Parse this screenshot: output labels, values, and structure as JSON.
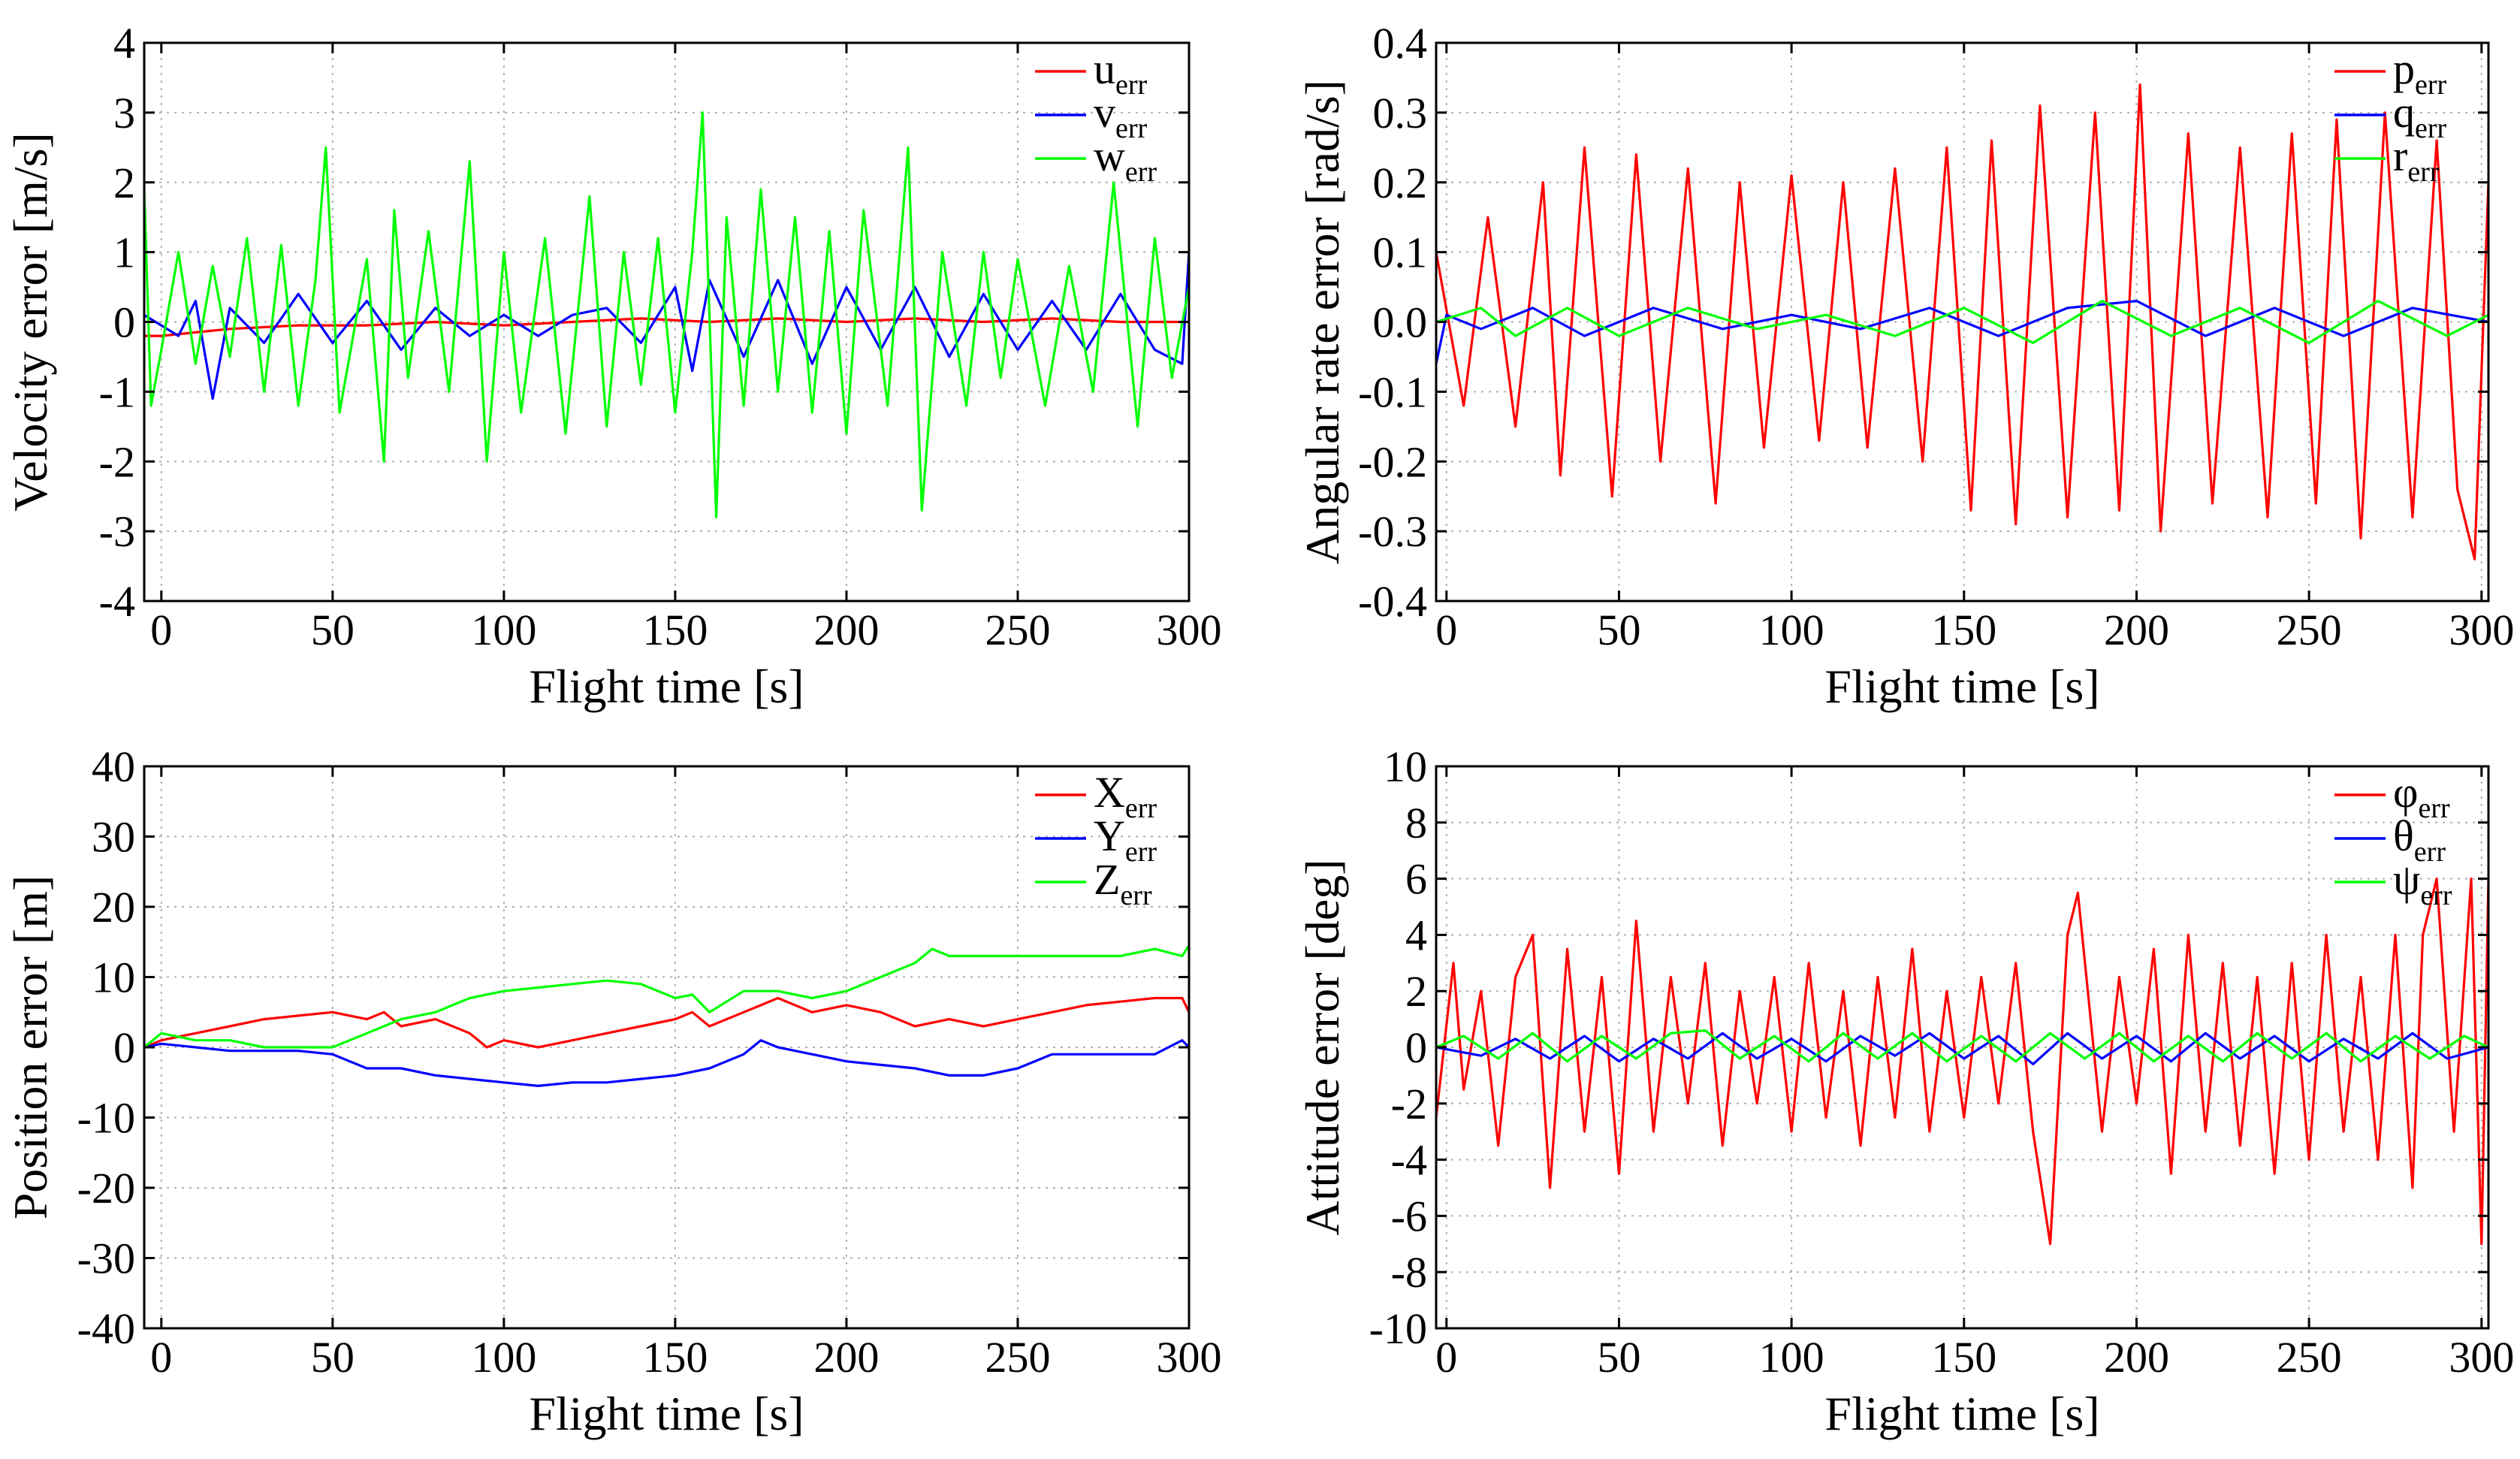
{
  "chart_data": [
    {
      "type": "line",
      "ylabel": "Velocity error [m/s]",
      "xlabel": "Flight time [s]",
      "xlim": [
        -5,
        300
      ],
      "ylim": [
        -4,
        4
      ],
      "xticks": [
        0,
        50,
        100,
        150,
        200,
        250,
        300
      ],
      "yticks": [
        -4,
        -3,
        -2,
        -1,
        0,
        1,
        2,
        3,
        4
      ],
      "ytick_labels": [
        "-4",
        "-3",
        "-2",
        "-1",
        "0",
        "1",
        "2",
        "3",
        "4"
      ],
      "grid": true,
      "legend_position": "top-right",
      "series": [
        {
          "name": "u",
          "sub": "err",
          "color": "#ff0000",
          "x": [
            -5,
            0,
            10,
            20,
            40,
            60,
            80,
            100,
            120,
            140,
            160,
            180,
            200,
            220,
            240,
            260,
            280,
            300
          ],
          "y": [
            -0.2,
            -0.2,
            -0.15,
            -0.1,
            -0.05,
            -0.05,
            0,
            -0.05,
            0,
            0.05,
            0,
            0.05,
            0,
            0.05,
            0,
            0.05,
            0,
            0
          ]
        },
        {
          "name": "v",
          "sub": "err",
          "color": "#0000ff",
          "x": [
            -5,
            5,
            10,
            15,
            20,
            30,
            40,
            50,
            60,
            70,
            80,
            90,
            100,
            110,
            120,
            130,
            140,
            150,
            155,
            160,
            170,
            180,
            190,
            200,
            210,
            220,
            230,
            240,
            250,
            260,
            270,
            280,
            290,
            298,
            300
          ],
          "y": [
            0.1,
            -0.2,
            0.3,
            -1.1,
            0.2,
            -0.3,
            0.4,
            -0.3,
            0.3,
            -0.4,
            0.2,
            -0.2,
            0.1,
            -0.2,
            0.1,
            0.2,
            -0.3,
            0.5,
            -0.7,
            0.6,
            -0.5,
            0.6,
            -0.6,
            0.5,
            -0.4,
            0.5,
            -0.5,
            0.4,
            -0.4,
            0.3,
            -0.4,
            0.4,
            -0.4,
            -0.6,
            1.0
          ]
        },
        {
          "name": "w",
          "sub": "err",
          "color": "#00ff00",
          "x": [
            -5,
            -3,
            0,
            5,
            10,
            15,
            20,
            25,
            30,
            35,
            40,
            45,
            48,
            52,
            60,
            65,
            68,
            72,
            78,
            84,
            90,
            95,
            100,
            105,
            112,
            118,
            125,
            130,
            135,
            140,
            145,
            150,
            155,
            158,
            162,
            165,
            170,
            175,
            180,
            185,
            190,
            195,
            200,
            205,
            212,
            218,
            222,
            228,
            235,
            240,
            245,
            250,
            258,
            265,
            272,
            278,
            285,
            290,
            295,
            300
          ],
          "y": [
            1.9,
            -1.2,
            -0.4,
            1.0,
            -0.6,
            0.8,
            -0.5,
            1.2,
            -1.0,
            1.1,
            -1.2,
            0.6,
            2.5,
            -1.3,
            0.9,
            -2.0,
            1.6,
            -0.8,
            1.3,
            -1.0,
            2.3,
            -2.0,
            1.0,
            -1.3,
            1.2,
            -1.6,
            1.8,
            -1.5,
            1.0,
            -0.9,
            1.2,
            -1.3,
            1.0,
            3.0,
            -2.8,
            1.5,
            -1.2,
            1.9,
            -1.0,
            1.5,
            -1.3,
            1.3,
            -1.6,
            1.6,
            -1.2,
            2.5,
            -2.7,
            1.0,
            -1.2,
            1.0,
            -0.8,
            0.9,
            -1.2,
            0.8,
            -1.0,
            2.0,
            -1.5,
            1.2,
            -0.8,
            0.5
          ]
        }
      ]
    },
    {
      "type": "line",
      "ylabel": "Angular rate error [rad/s]",
      "xlabel": "Flight time [s]",
      "xlim": [
        -3,
        302
      ],
      "ylim": [
        -0.4,
        0.4
      ],
      "xticks": [
        0,
        50,
        100,
        150,
        200,
        250,
        300
      ],
      "yticks": [
        -0.4,
        -0.3,
        -0.2,
        -0.1,
        0.0,
        0.1,
        0.2,
        0.3,
        0.4
      ],
      "ytick_labels": [
        "-0.4",
        "-0.3",
        "-0.2",
        "-0.1",
        "0.0",
        "0.1",
        "0.2",
        "0.3",
        "0.4"
      ],
      "grid": true,
      "legend_position": "top-right",
      "series": [
        {
          "name": "p",
          "sub": "err",
          "color": "#ff0000",
          "x": [
            -3,
            5,
            12,
            20,
            28,
            33,
            40,
            48,
            55,
            62,
            70,
            78,
            85,
            92,
            100,
            108,
            115,
            122,
            130,
            138,
            145,
            152,
            158,
            165,
            172,
            180,
            188,
            195,
            201,
            207,
            215,
            222,
            230,
            238,
            245,
            252,
            258,
            265,
            272,
            280,
            287,
            293,
            298,
            302
          ],
          "y": [
            0.1,
            -0.12,
            0.15,
            -0.15,
            0.2,
            -0.22,
            0.25,
            -0.25,
            0.24,
            -0.2,
            0.22,
            -0.26,
            0.2,
            -0.18,
            0.21,
            -0.17,
            0.2,
            -0.18,
            0.22,
            -0.2,
            0.25,
            -0.27,
            0.26,
            -0.29,
            0.31,
            -0.28,
            0.3,
            -0.27,
            0.34,
            -0.3,
            0.27,
            -0.26,
            0.25,
            -0.28,
            0.27,
            -0.26,
            0.29,
            -0.31,
            0.3,
            -0.28,
            0.26,
            -0.24,
            -0.34,
            0.2
          ]
        },
        {
          "name": "q",
          "sub": "err",
          "color": "#0000ff",
          "x": [
            -3,
            0,
            10,
            25,
            40,
            60,
            80,
            100,
            120,
            140,
            160,
            180,
            200,
            220,
            240,
            260,
            280,
            302
          ],
          "y": [
            -0.06,
            0.01,
            -0.01,
            0.02,
            -0.02,
            0.02,
            -0.01,
            0.01,
            -0.01,
            0.02,
            -0.02,
            0.02,
            0.03,
            -0.02,
            0.02,
            -0.02,
            0.02,
            0.0
          ]
        },
        {
          "name": "r",
          "sub": "err",
          "color": "#00ff00",
          "x": [
            -3,
            10,
            20,
            35,
            50,
            70,
            90,
            110,
            130,
            150,
            170,
            190,
            210,
            230,
            250,
            270,
            290,
            302
          ],
          "y": [
            0.0,
            0.02,
            -0.02,
            0.02,
            -0.02,
            0.02,
            -0.01,
            0.01,
            -0.02,
            0.02,
            -0.03,
            0.03,
            -0.02,
            0.02,
            -0.03,
            0.03,
            -0.02,
            0.01
          ]
        }
      ]
    },
    {
      "type": "line",
      "ylabel": "Position error [m]",
      "xlabel": "Flight time [s]",
      "xlim": [
        -5,
        300
      ],
      "ylim": [
        -40,
        40
      ],
      "xticks": [
        0,
        50,
        100,
        150,
        200,
        250,
        300
      ],
      "yticks": [
        -40,
        -30,
        -20,
        -10,
        0,
        10,
        20,
        30,
        40
      ],
      "ytick_labels": [
        "-40",
        "-30",
        "-20",
        "-10",
        "0",
        "10",
        "20",
        "30",
        "40"
      ],
      "grid": true,
      "legend_position": "top-right",
      "series": [
        {
          "name": "X",
          "sub": "err",
          "color": "#ff0000",
          "x": [
            -5,
            0,
            10,
            20,
            30,
            40,
            50,
            60,
            65,
            70,
            80,
            90,
            95,
            100,
            110,
            120,
            130,
            140,
            150,
            155,
            160,
            170,
            180,
            190,
            200,
            210,
            220,
            230,
            240,
            250,
            260,
            270,
            280,
            290,
            298,
            300
          ],
          "y": [
            0,
            1,
            2,
            3,
            4,
            4.5,
            5,
            4,
            5,
            3,
            4,
            2,
            0,
            1,
            0,
            1,
            2,
            3,
            4,
            5,
            3,
            5,
            7,
            5,
            6,
            5,
            3,
            4,
            3,
            4,
            5,
            6,
            6.5,
            7,
            7,
            5
          ]
        },
        {
          "name": "Y",
          "sub": "err",
          "color": "#0000ff",
          "x": [
            -5,
            0,
            10,
            20,
            30,
            40,
            50,
            60,
            70,
            80,
            90,
            100,
            110,
            120,
            130,
            140,
            150,
            160,
            170,
            175,
            180,
            190,
            200,
            210,
            220,
            230,
            240,
            250,
            260,
            270,
            280,
            290,
            298,
            300
          ],
          "y": [
            0,
            0.5,
            0,
            -0.5,
            -0.5,
            -0.5,
            -1,
            -3,
            -3,
            -4,
            -4.5,
            -5,
            -5.5,
            -5,
            -5,
            -4.5,
            -4,
            -3,
            -1,
            1,
            0,
            -1,
            -2,
            -2.5,
            -3,
            -4,
            -4,
            -3,
            -1,
            -1,
            -1,
            -1,
            1,
            0
          ]
        },
        {
          "name": "Z",
          "sub": "err",
          "color": "#00ff00",
          "x": [
            -5,
            0,
            10,
            20,
            30,
            40,
            50,
            60,
            70,
            80,
            90,
            100,
            110,
            120,
            130,
            140,
            150,
            155,
            160,
            170,
            180,
            190,
            200,
            210,
            220,
            225,
            230,
            240,
            250,
            260,
            270,
            280,
            290,
            298,
            300
          ],
          "y": [
            0,
            2,
            1,
            1,
            0,
            0,
            0,
            2,
            4,
            5,
            7,
            8,
            8.5,
            9,
            9.5,
            9,
            7,
            7.5,
            5,
            8,
            8,
            7,
            8,
            10,
            12,
            14,
            13,
            13,
            13,
            13,
            13,
            13,
            14,
            13,
            14.5
          ]
        }
      ]
    },
    {
      "type": "line",
      "ylabel": "Attitude error [deg]",
      "xlabel": "Flight time [s]",
      "xlim": [
        -3,
        302
      ],
      "ylim": [
        -10,
        10
      ],
      "xticks": [
        0,
        50,
        100,
        150,
        200,
        250,
        300
      ],
      "yticks": [
        -10,
        -8,
        -6,
        -4,
        -2,
        0,
        2,
        4,
        6,
        8,
        10
      ],
      "ytick_labels": [
        "-10",
        "-8",
        "-6",
        "-4",
        "-2",
        "0",
        "2",
        "4",
        "6",
        "8",
        "10"
      ],
      "grid": true,
      "legend_position": "top-right",
      "series": [
        {
          "name": "φ",
          "sub": "err",
          "color": "#ff0000",
          "x": [
            -3,
            2,
            5,
            10,
            15,
            20,
            25,
            30,
            35,
            40,
            45,
            50,
            55,
            60,
            65,
            70,
            75,
            80,
            85,
            90,
            95,
            100,
            105,
            110,
            115,
            120,
            125,
            130,
            135,
            140,
            145,
            150,
            155,
            160,
            165,
            170,
            175,
            180,
            183,
            190,
            195,
            200,
            205,
            210,
            215,
            220,
            225,
            230,
            235,
            240,
            245,
            250,
            255,
            260,
            265,
            270,
            275,
            280,
            283,
            287,
            292,
            297,
            300,
            302
          ],
          "y": [
            -2.5,
            3.0,
            -1.5,
            2.0,
            -3.5,
            2.5,
            4.0,
            -5.0,
            3.5,
            -3.0,
            2.5,
            -4.5,
            4.5,
            -3.0,
            2.5,
            -2.0,
            3.0,
            -3.5,
            2.0,
            -2.0,
            2.5,
            -3.0,
            3.0,
            -2.5,
            2.0,
            -3.5,
            2.5,
            -2.5,
            3.5,
            -3.0,
            2.0,
            -2.5,
            2.5,
            -2.0,
            3.0,
            -3.0,
            -7.0,
            4.0,
            5.5,
            -3.0,
            2.5,
            -2.0,
            3.5,
            -4.5,
            4.0,
            -3.0,
            3.0,
            -3.5,
            2.5,
            -4.5,
            3.0,
            -4.0,
            4.0,
            -3.0,
            2.5,
            -4.0,
            4.0,
            -5.0,
            4.0,
            6.0,
            -3.0,
            6.0,
            -7.0,
            6.0
          ]
        },
        {
          "name": "θ",
          "sub": "err",
          "color": "#0000ff",
          "x": [
            -3,
            10,
            20,
            30,
            40,
            50,
            60,
            70,
            80,
            90,
            100,
            110,
            120,
            130,
            140,
            150,
            160,
            170,
            180,
            190,
            200,
            210,
            220,
            230,
            240,
            250,
            260,
            270,
            280,
            290,
            302
          ],
          "y": [
            0.0,
            -0.3,
            0.3,
            -0.4,
            0.4,
            -0.5,
            0.3,
            -0.4,
            0.5,
            -0.4,
            0.3,
            -0.5,
            0.4,
            -0.3,
            0.5,
            -0.4,
            0.4,
            -0.6,
            0.5,
            -0.4,
            0.4,
            -0.5,
            0.5,
            -0.4,
            0.4,
            -0.5,
            0.3,
            -0.4,
            0.5,
            -0.4,
            0.0
          ]
        },
        {
          "name": "ψ",
          "sub": "err",
          "color": "#00ff00",
          "x": [
            -3,
            5,
            15,
            25,
            35,
            45,
            55,
            65,
            75,
            85,
            95,
            105,
            115,
            125,
            135,
            145,
            155,
            165,
            175,
            185,
            195,
            205,
            215,
            225,
            235,
            245,
            255,
            265,
            275,
            285,
            295,
            302
          ],
          "y": [
            0.0,
            0.4,
            -0.4,
            0.5,
            -0.5,
            0.4,
            -0.4,
            0.5,
            0.6,
            -0.4,
            0.4,
            -0.5,
            0.5,
            -0.4,
            0.5,
            -0.5,
            0.4,
            -0.5,
            0.5,
            -0.4,
            0.5,
            -0.5,
            0.4,
            -0.5,
            0.5,
            -0.4,
            0.5,
            -0.5,
            0.4,
            -0.4,
            0.4,
            0.0
          ]
        }
      ]
    }
  ]
}
